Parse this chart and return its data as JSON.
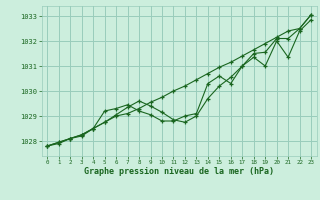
{
  "title": "Graphe pression niveau de la mer (hPa)",
  "bg_color": "#cceedd",
  "grid_color": "#99ccbb",
  "line_color": "#1a6620",
  "text_color": "#1a6620",
  "xlim": [
    -0.5,
    23.5
  ],
  "ylim": [
    1027.4,
    1033.4
  ],
  "yticks": [
    1028,
    1029,
    1030,
    1031,
    1032,
    1033
  ],
  "xticks": [
    0,
    1,
    2,
    3,
    4,
    5,
    6,
    7,
    8,
    9,
    10,
    11,
    12,
    13,
    14,
    15,
    16,
    17,
    18,
    19,
    20,
    21,
    22,
    23
  ],
  "series1": [
    1027.8,
    1027.9,
    1028.1,
    1028.2,
    1028.5,
    1029.2,
    1029.3,
    1029.45,
    1029.2,
    1029.05,
    1028.8,
    1028.8,
    1029.0,
    1029.1,
    1030.3,
    1030.6,
    1030.3,
    1031.0,
    1031.35,
    1031.0,
    1032.0,
    1031.35,
    1032.4,
    1032.85
  ],
  "series2": [
    1027.8,
    1027.95,
    1028.1,
    1028.25,
    1028.5,
    1028.75,
    1029.0,
    1029.1,
    1029.3,
    1029.55,
    1029.75,
    1030.0,
    1030.2,
    1030.45,
    1030.7,
    1030.95,
    1031.15,
    1031.4,
    1031.65,
    1031.9,
    1032.15,
    1032.4,
    1032.5,
    1033.05
  ],
  "series3": [
    1027.8,
    1027.95,
    1028.1,
    1028.25,
    1028.5,
    1028.75,
    1029.05,
    1029.35,
    1029.6,
    1029.4,
    1029.15,
    1028.85,
    1028.75,
    1029.0,
    1029.7,
    1030.2,
    1030.55,
    1031.0,
    1031.5,
    1031.55,
    1032.1,
    1032.1,
    1032.5,
    1033.05
  ]
}
